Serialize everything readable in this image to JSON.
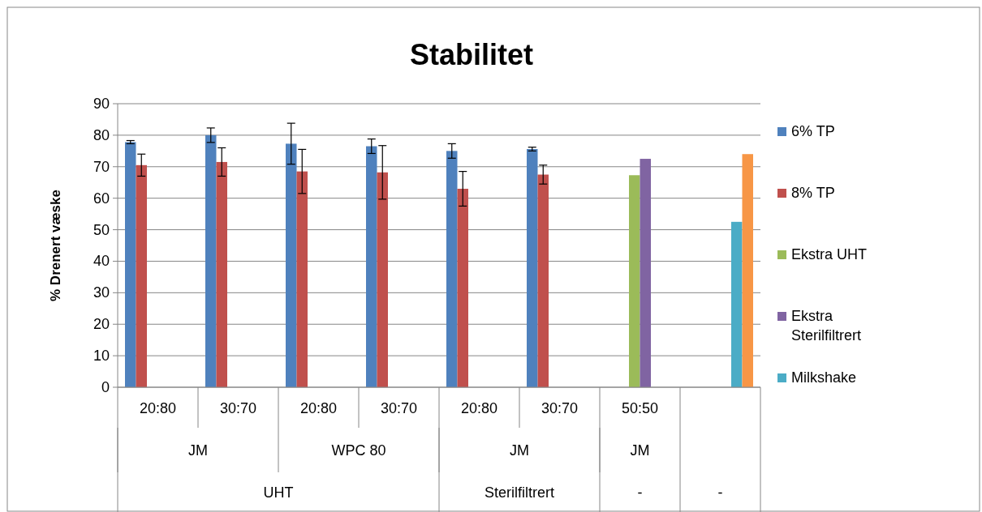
{
  "chart_data": {
    "type": "bar",
    "title": "Stabilitet",
    "ylabel": "% Drenert væske",
    "categories": [
      "20:80",
      "30:70",
      "20:80",
      "30:70",
      "20:80",
      "30:70",
      "50:50",
      null
    ],
    "series": [
      {
        "name": "6% TP",
        "color": "#4f81bd",
        "values": [
          77.8,
          80,
          77.3,
          76.5,
          75,
          75.6,
          null,
          null
        ],
        "errors": [
          0.5,
          2.3,
          6.5,
          2.3,
          2.3,
          0.6,
          null,
          null
        ]
      },
      {
        "name": "8% TP",
        "color": "#c0504d",
        "values": [
          70.5,
          71.5,
          68.5,
          68.2,
          63,
          67.5,
          null,
          null
        ],
        "errors": [
          3.5,
          4.5,
          7,
          8.5,
          5.5,
          3,
          null,
          null
        ]
      },
      {
        "name": "Ekstra UHT",
        "color": "#9bbb59",
        "values": [
          null,
          null,
          null,
          null,
          null,
          null,
          67.3,
          null
        ]
      },
      {
        "name": "Ekstra Sterilfiltrert",
        "color": "#8064a2",
        "values": [
          null,
          null,
          null,
          null,
          null,
          null,
          72.5,
          null
        ]
      },
      {
        "name": "Milkshake",
        "color": "#4bacc6",
        "values": [
          null,
          null,
          null,
          null,
          null,
          null,
          null,
          52.5
        ]
      },
      {
        "color": "#f79646",
        "values": [
          null,
          null,
          null,
          null,
          null,
          null,
          null,
          74
        ]
      }
    ],
    "annotations": [
      "JM",
      "WPC 80",
      "JM",
      "JM",
      "UHT",
      "Sterilfiltrert",
      "-",
      "-"
    ],
    "ylim": [
      0,
      90
    ],
    "yticks": [
      0,
      10,
      20,
      30,
      40,
      50,
      60,
      70,
      80,
      90
    ],
    "grid": "y",
    "legend": "right"
  }
}
